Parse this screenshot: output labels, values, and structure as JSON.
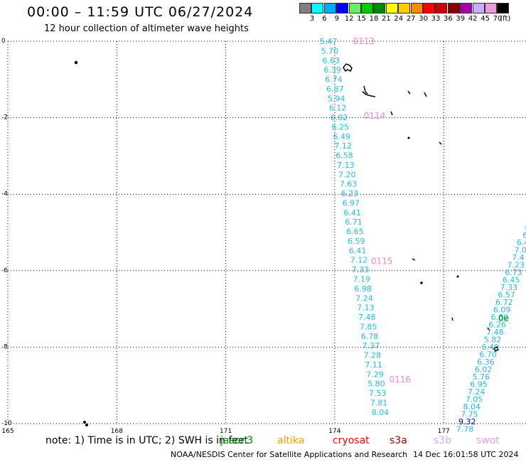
{
  "header": {
    "title": "00:00 – 11:59 UTC 06/27/2024",
    "subtitle": "12 hour collection of altimeter wave heights"
  },
  "legend": {
    "unit": "(ft)",
    "items": [
      {
        "label": "3",
        "color": "#808080"
      },
      {
        "label": "6",
        "color": "#00ffff"
      },
      {
        "label": "9",
        "color": "#00aaff"
      },
      {
        "label": "12",
        "color": "#0000ff"
      },
      {
        "label": "15",
        "color": "#66ee66"
      },
      {
        "label": "18",
        "color": "#00cc00"
      },
      {
        "label": "21",
        "color": "#008800"
      },
      {
        "label": "24",
        "color": "#ffff00"
      },
      {
        "label": "27",
        "color": "#ffcc00"
      },
      {
        "label": "30",
        "color": "#ff8800"
      },
      {
        "label": "33",
        "color": "#ff0000"
      },
      {
        "label": "36",
        "color": "#cc0000"
      },
      {
        "label": "39",
        "color": "#880000"
      },
      {
        "label": "42",
        "color": "#aa00aa"
      },
      {
        "label": "45",
        "color": "#ccaaff"
      },
      {
        "label": "70",
        "color": "#ee99dd"
      },
      {
        "label": "",
        "color": "#000000"
      }
    ]
  },
  "map": {
    "lon_range": [
      165,
      179
    ],
    "lat_range": [
      -10,
      0
    ],
    "lon_ticks": [
      "165",
      "168",
      "171",
      "174",
      "177"
    ],
    "lat_ticks": [
      "0",
      "-2",
      "-4",
      "-6",
      "-8",
      "-10"
    ],
    "grid": true,
    "track_color": "#22bbdd",
    "track1": {
      "values": [
        "5.47",
        "5.70",
        "6.63",
        "6.39",
        "6.74",
        "6.87",
        "5.94",
        "6.12",
        "6.02",
        "6.25",
        "6.49",
        "7.12",
        "6.58",
        "7.13",
        "7.20",
        "7.63",
        "6.23",
        "6.97",
        "6.41",
        "6.71",
        "6.65",
        "6.59",
        "6.41",
        "7.12",
        "7.33",
        "7.19",
        "6.98",
        "7.24",
        "7.13",
        "7.48",
        "7.85",
        "6.78",
        "7.37",
        "7.28",
        "7.11",
        "7.29",
        "5.80",
        "7.53",
        "7.81",
        "8.04"
      ]
    },
    "track2": {
      "values": [
        "6",
        "6",
        "6.4",
        "7.0",
        "7.4",
        "7.23",
        "6.73",
        "6.45",
        "7.33",
        "6.57",
        "6.72",
        "6.09",
        "6.60",
        "6.26",
        "7.48",
        "5.82",
        "6.40",
        "6.70",
        "6.36",
        "6.02",
        "5.76",
        "6.95",
        "7.24",
        "7.05",
        "8.04",
        "7.75",
        "9.32",
        "7.78"
      ],
      "highlight": {
        "index": 26,
        "color": "#0000cc"
      }
    },
    "time_labels": [
      {
        "text": "0113",
        "lon": 174.5,
        "lat": 0.0,
        "color": "#ee88cc"
      },
      {
        "text": "0114",
        "lon": 174.8,
        "lat": -1.95,
        "color": "#ee88cc"
      },
      {
        "text": "0115",
        "lon": 175.0,
        "lat": -5.75,
        "color": "#ee88cc"
      },
      {
        "text": "0116",
        "lon": 175.5,
        "lat": -8.85,
        "color": "#ee88cc"
      },
      {
        "text": "0e",
        "lon": 178.5,
        "lat": -7.25,
        "color": "#008800"
      }
    ]
  },
  "note": "note: 1) Time is in UTC; 2) SWH is in feet",
  "satellites": [
    {
      "name": "jason3",
      "color": "#008800"
    },
    {
      "name": "altika",
      "color": "#ff9900"
    },
    {
      "name": "cryosat",
      "color": "#ff0000"
    },
    {
      "name": "s3a",
      "color": "#990000"
    },
    {
      "name": "s3b",
      "color": "#ccaaff"
    },
    {
      "name": "swot",
      "color": "#ee99dd"
    }
  ],
  "footer": {
    "credit": "NOAA/NESDIS Center for Satellite Applications and Research",
    "generated": "14 Dec 16:01:58 UTC 2024"
  }
}
